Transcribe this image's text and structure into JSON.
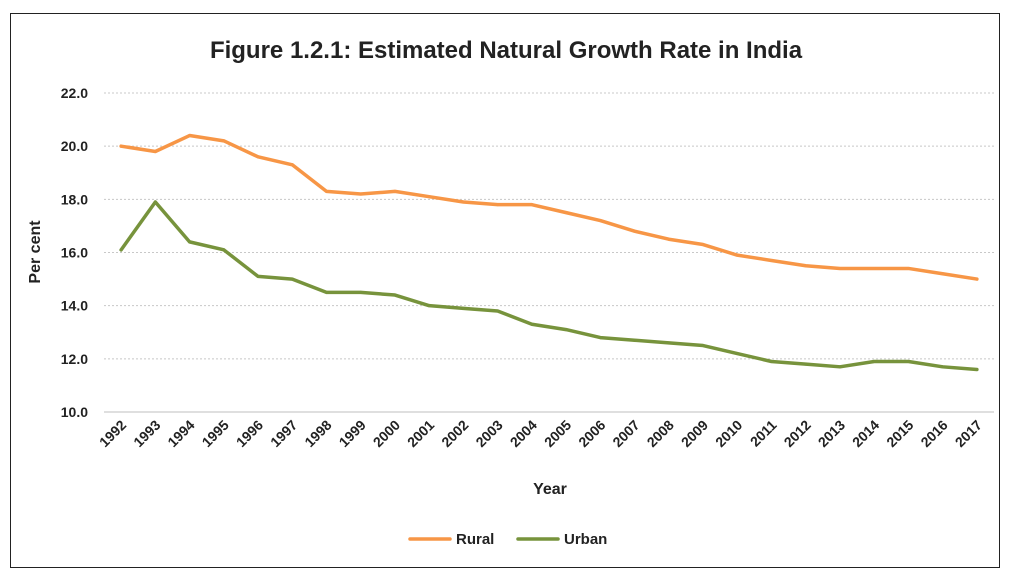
{
  "chart_data": {
    "type": "line",
    "title": "Figure 1.2.1: Estimated Natural Growth Rate in India",
    "xlabel": "Year",
    "ylabel": "Per cent",
    "ylim": [
      10,
      22
    ],
    "yticks": [
      "10.0",
      "12.0",
      "14.0",
      "16.0",
      "18.0",
      "20.0",
      "22.0"
    ],
    "grid": "horizontal",
    "legend_position": "bottom",
    "categories": [
      "1992",
      "1993",
      "1994",
      "1995",
      "1996",
      "1997",
      "1998",
      "1999",
      "2000",
      "2001",
      "2002",
      "2003",
      "2004",
      "2005",
      "2006",
      "2007",
      "2008",
      "2009",
      "2010",
      "2011",
      "2012",
      "2013",
      "2014",
      "2015",
      "2016",
      "2017"
    ],
    "series": [
      {
        "name": "Rural",
        "color": "#F79646",
        "values": [
          20.0,
          19.8,
          20.4,
          20.2,
          19.6,
          19.3,
          18.3,
          18.2,
          18.3,
          18.1,
          17.9,
          17.8,
          17.8,
          17.5,
          17.2,
          16.8,
          16.5,
          16.3,
          15.9,
          15.7,
          15.5,
          15.4,
          15.4,
          15.4,
          15.2,
          15.0
        ]
      },
      {
        "name": "Urban",
        "color": "#77933C",
        "values": [
          16.1,
          17.9,
          16.4,
          16.1,
          15.1,
          15.0,
          14.5,
          14.5,
          14.4,
          14.0,
          13.9,
          13.8,
          13.3,
          13.1,
          12.8,
          12.7,
          12.6,
          12.5,
          12.2,
          11.9,
          11.8,
          11.7,
          11.9,
          11.9,
          11.7,
          11.6
        ]
      }
    ]
  }
}
